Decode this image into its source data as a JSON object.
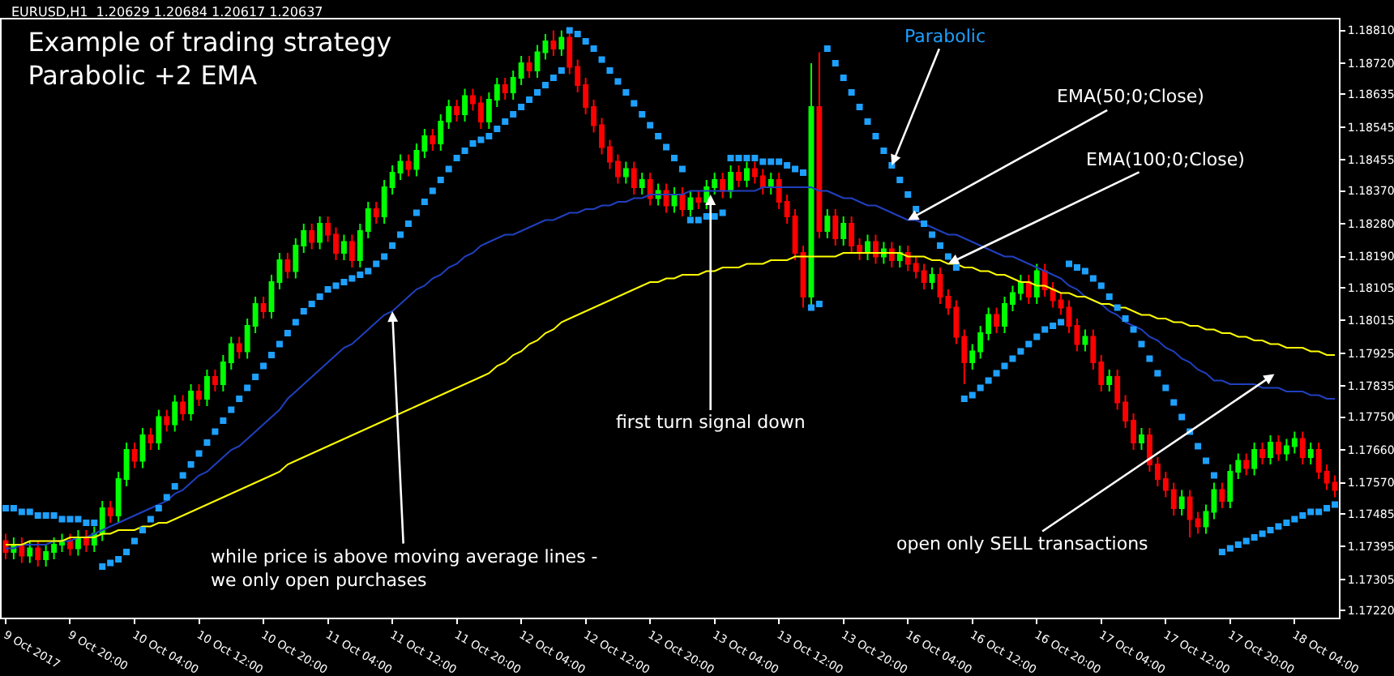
{
  "chart_data": {
    "type": "candlestick",
    "title": "Example of trading strategy\nParabolic +2 EMA",
    "subtitle": "EURUSD,H1  1.20629 1.20684 1.20617 1.20637",
    "categories": [
      "9 Oct 2017",
      null,
      null,
      null,
      null,
      null,
      null,
      null,
      "9 Oct 20:00",
      null,
      null,
      null,
      null,
      null,
      null,
      null,
      "10 Oct 04:00",
      null,
      null,
      null,
      null,
      null,
      null,
      null,
      "10 Oct 12:00",
      null,
      null,
      null,
      null,
      null,
      null,
      null,
      "10 Oct 20:00",
      null,
      null,
      null,
      null,
      null,
      null,
      null,
      "11 Oct 04:00",
      null,
      null,
      null,
      null,
      null,
      null,
      null,
      "11 Oct 12:00",
      null,
      null,
      null,
      null,
      null,
      null,
      null,
      "11 Oct 20:00",
      null,
      null,
      null,
      null,
      null,
      null,
      null,
      "12 Oct 04:00",
      null,
      null,
      null,
      null,
      null,
      null,
      null,
      "12 Oct 12:00",
      null,
      null,
      null,
      null,
      null,
      null,
      null,
      "12 Oct 20:00",
      null,
      null,
      null,
      null,
      null,
      null,
      null,
      "13 Oct 04:00",
      null,
      null,
      null,
      null,
      null,
      null,
      null,
      "13 Oct 12:00",
      null,
      null,
      null,
      null,
      null,
      null,
      null,
      "13 Oct 20:00",
      null,
      null,
      null,
      null,
      null,
      null,
      null,
      "16 Oct 04:00",
      null,
      null,
      null,
      null,
      null,
      null,
      null,
      "16 Oct 12:00",
      null,
      null,
      null,
      null,
      null,
      null,
      null,
      "16 Oct 20:00",
      null,
      null,
      null,
      null,
      null,
      null,
      null,
      "17 Oct 04:00",
      null,
      null,
      null,
      null,
      null,
      null,
      null,
      "17 Oct 12:00",
      null,
      null,
      null,
      null,
      null,
      null,
      null,
      "17 Oct 20:00",
      null,
      null,
      null,
      null,
      null,
      null,
      null,
      "18 Oct 04:00",
      null,
      null,
      null,
      null,
      null
    ],
    "ohlc": [
      [
        1.1741,
        1.1743,
        1.1736,
        1.1738
      ],
      [
        1.1738,
        1.1742,
        1.1736,
        1.174
      ],
      [
        1.174,
        1.1742,
        1.1735,
        1.1737
      ],
      [
        1.1737,
        1.1741,
        1.1735,
        1.1739
      ],
      [
        1.1739,
        1.1741,
        1.1734,
        1.1736
      ],
      [
        1.1736,
        1.174,
        1.1734,
        1.1738
      ],
      [
        1.1738,
        1.1742,
        1.1736,
        1.174
      ],
      [
        1.174,
        1.1743,
        1.1738,
        1.1741
      ],
      [
        1.1741,
        1.1743,
        1.1737,
        1.1739
      ],
      [
        1.1739,
        1.1744,
        1.1737,
        1.1742
      ],
      [
        1.1742,
        1.1744,
        1.1738,
        1.174
      ],
      [
        1.174,
        1.1745,
        1.1738,
        1.1743
      ],
      [
        1.1743,
        1.1752,
        1.1741,
        1.175
      ],
      [
        1.175,
        1.1752,
        1.1746,
        1.1748
      ],
      [
        1.1748,
        1.176,
        1.1746,
        1.1758
      ],
      [
        1.1758,
        1.1768,
        1.1756,
        1.1766
      ],
      [
        1.1766,
        1.1768,
        1.1761,
        1.1763
      ],
      [
        1.1763,
        1.1772,
        1.1761,
        1.177
      ],
      [
        1.177,
        1.1772,
        1.1766,
        1.1768
      ],
      [
        1.1768,
        1.1777,
        1.1766,
        1.1775
      ],
      [
        1.1775,
        1.1777,
        1.1771,
        1.1773
      ],
      [
        1.1773,
        1.1781,
        1.1771,
        1.1779
      ],
      [
        1.1779,
        1.1781,
        1.1774,
        1.1776
      ],
      [
        1.1776,
        1.1784,
        1.1774,
        1.1782
      ],
      [
        1.1782,
        1.1784,
        1.1778,
        1.178
      ],
      [
        1.178,
        1.1788,
        1.1778,
        1.1786
      ],
      [
        1.1786,
        1.1788,
        1.1782,
        1.1784
      ],
      [
        1.1784,
        1.1792,
        1.1782,
        1.179
      ],
      [
        1.179,
        1.1797,
        1.1788,
        1.1795
      ],
      [
        1.1795,
        1.1797,
        1.1791,
        1.1793
      ],
      [
        1.1793,
        1.1802,
        1.1791,
        1.18
      ],
      [
        1.18,
        1.1808,
        1.1798,
        1.1806
      ],
      [
        1.1806,
        1.1808,
        1.1802,
        1.1804
      ],
      [
        1.1804,
        1.1814,
        1.1802,
        1.1812
      ],
      [
        1.1812,
        1.182,
        1.181,
        1.1818
      ],
      [
        1.1818,
        1.182,
        1.1813,
        1.1815
      ],
      [
        1.1815,
        1.1824,
        1.1813,
        1.1822
      ],
      [
        1.1822,
        1.1828,
        1.182,
        1.1826
      ],
      [
        1.1826,
        1.1828,
        1.1821,
        1.1823
      ],
      [
        1.1823,
        1.183,
        1.1821,
        1.1828
      ],
      [
        1.1828,
        1.183,
        1.1823,
        1.1825
      ],
      [
        1.1825,
        1.1827,
        1.1818,
        1.182
      ],
      [
        1.182,
        1.1825,
        1.1818,
        1.1823
      ],
      [
        1.1823,
        1.1825,
        1.1816,
        1.1818
      ],
      [
        1.1818,
        1.1828,
        1.1816,
        1.1826
      ],
      [
        1.1826,
        1.1834,
        1.1824,
        1.1832
      ],
      [
        1.1832,
        1.1834,
        1.1828,
        1.183
      ],
      [
        1.183,
        1.184,
        1.1828,
        1.1838
      ],
      [
        1.1838,
        1.1844,
        1.1836,
        1.1842
      ],
      [
        1.1842,
        1.1847,
        1.184,
        1.1845
      ],
      [
        1.1845,
        1.1847,
        1.1841,
        1.1843
      ],
      [
        1.1843,
        1.185,
        1.1841,
        1.1848
      ],
      [
        1.1848,
        1.1854,
        1.1846,
        1.1852
      ],
      [
        1.1852,
        1.1854,
        1.1848,
        1.185
      ],
      [
        1.185,
        1.1858,
        1.1848,
        1.1856
      ],
      [
        1.1856,
        1.1862,
        1.1854,
        1.186
      ],
      [
        1.186,
        1.1862,
        1.1856,
        1.1858
      ],
      [
        1.1858,
        1.1865,
        1.1856,
        1.1863
      ],
      [
        1.1863,
        1.1865,
        1.1859,
        1.1861
      ],
      [
        1.1861,
        1.1863,
        1.1854,
        1.1856
      ],
      [
        1.1856,
        1.1864,
        1.1854,
        1.1862
      ],
      [
        1.1862,
        1.1868,
        1.186,
        1.1866
      ],
      [
        1.1866,
        1.1868,
        1.1862,
        1.1864
      ],
      [
        1.1864,
        1.187,
        1.1862,
        1.1868
      ],
      [
        1.1868,
        1.1874,
        1.1866,
        1.1872
      ],
      [
        1.1872,
        1.1874,
        1.1868,
        1.187
      ],
      [
        1.187,
        1.1877,
        1.1868,
        1.1875
      ],
      [
        1.1875,
        1.188,
        1.1873,
        1.1878
      ],
      [
        1.1878,
        1.1881,
        1.1874,
        1.1876
      ],
      [
        1.1876,
        1.1881,
        1.1874,
        1.1879
      ],
      [
        1.1879,
        1.1881,
        1.1869,
        1.1871
      ],
      [
        1.1871,
        1.1873,
        1.1864,
        1.1866
      ],
      [
        1.1866,
        1.1868,
        1.1858,
        1.186
      ],
      [
        1.186,
        1.1862,
        1.1853,
        1.1855
      ],
      [
        1.1855,
        1.1857,
        1.1847,
        1.1849
      ],
      [
        1.1849,
        1.1851,
        1.1843,
        1.1845
      ],
      [
        1.1845,
        1.1847,
        1.1839,
        1.1841
      ],
      [
        1.1841,
        1.1845,
        1.1839,
        1.1843
      ],
      [
        1.1843,
        1.1845,
        1.1836,
        1.1838
      ],
      [
        1.1838,
        1.1842,
        1.1836,
        1.184
      ],
      [
        1.184,
        1.1842,
        1.1833,
        1.1835
      ],
      [
        1.1835,
        1.1839,
        1.1833,
        1.1837
      ],
      [
        1.1837,
        1.1839,
        1.1831,
        1.1833
      ],
      [
        1.1833,
        1.1838,
        1.1831,
        1.1836
      ],
      [
        1.1836,
        1.1838,
        1.183,
        1.1832
      ],
      [
        1.1832,
        1.1837,
        1.183,
        1.1835
      ],
      [
        1.1835,
        1.1837,
        1.1832,
        1.1834
      ],
      [
        1.1834,
        1.184,
        1.1832,
        1.1838
      ],
      [
        1.1838,
        1.1842,
        1.1836,
        1.184
      ],
      [
        1.184,
        1.1842,
        1.1835,
        1.1837
      ],
      [
        1.1837,
        1.1844,
        1.1835,
        1.1842
      ],
      [
        1.1842,
        1.1844,
        1.1838,
        1.184
      ],
      [
        1.184,
        1.1845,
        1.1838,
        1.1843
      ],
      [
        1.1843,
        1.1845,
        1.1839,
        1.1841
      ],
      [
        1.1841,
        1.1843,
        1.1836,
        1.1838
      ],
      [
        1.1838,
        1.1842,
        1.1836,
        1.184
      ],
      [
        1.184,
        1.1842,
        1.1832,
        1.1834
      ],
      [
        1.1834,
        1.1836,
        1.1828,
        1.183
      ],
      [
        1.183,
        1.1832,
        1.1818,
        1.182
      ],
      [
        1.182,
        1.1822,
        1.1805,
        1.1808
      ],
      [
        1.1808,
        1.1872,
        1.1805,
        1.186
      ],
      [
        1.186,
        1.1875,
        1.1824,
        1.1826
      ],
      [
        1.1826,
        1.1832,
        1.1824,
        1.183
      ],
      [
        1.183,
        1.1832,
        1.1822,
        1.1824
      ],
      [
        1.1824,
        1.183,
        1.1822,
        1.1828
      ],
      [
        1.1828,
        1.183,
        1.182,
        1.1822
      ],
      [
        1.1822,
        1.1824,
        1.1818,
        1.182
      ],
      [
        1.182,
        1.1825,
        1.1818,
        1.1823
      ],
      [
        1.1823,
        1.1825,
        1.1817,
        1.1819
      ],
      [
        1.1819,
        1.1823,
        1.1817,
        1.1821
      ],
      [
        1.1821,
        1.1823,
        1.1816,
        1.1818
      ],
      [
        1.1818,
        1.1822,
        1.1816,
        1.182
      ],
      [
        1.182,
        1.1822,
        1.1815,
        1.1817
      ],
      [
        1.1817,
        1.1819,
        1.1813,
        1.1815
      ],
      [
        1.1815,
        1.1817,
        1.181,
        1.1812
      ],
      [
        1.1812,
        1.1816,
        1.181,
        1.1814
      ],
      [
        1.1814,
        1.1816,
        1.1806,
        1.1808
      ],
      [
        1.1808,
        1.181,
        1.1803,
        1.1805
      ],
      [
        1.1805,
        1.1807,
        1.1795,
        1.1797
      ],
      [
        1.1797,
        1.1799,
        1.1784,
        1.179
      ],
      [
        1.179,
        1.1795,
        1.1788,
        1.1793
      ],
      [
        1.1793,
        1.18,
        1.1791,
        1.1798
      ],
      [
        1.1798,
        1.1805,
        1.1796,
        1.1803
      ],
      [
        1.1803,
        1.1805,
        1.1798,
        1.18
      ],
      [
        1.18,
        1.1808,
        1.1798,
        1.1806
      ],
      [
        1.1806,
        1.1811,
        1.1804,
        1.1809
      ],
      [
        1.1809,
        1.1814,
        1.1807,
        1.1812
      ],
      [
        1.1812,
        1.1814,
        1.1806,
        1.1808
      ],
      [
        1.1808,
        1.1817,
        1.1806,
        1.1815
      ],
      [
        1.1815,
        1.1817,
        1.1808,
        1.181
      ],
      [
        1.181,
        1.1812,
        1.1805,
        1.1807
      ],
      [
        1.1807,
        1.1809,
        1.1803,
        1.1805
      ],
      [
        1.1805,
        1.1807,
        1.1798,
        1.18
      ],
      [
        1.18,
        1.1802,
        1.1793,
        1.1795
      ],
      [
        1.1795,
        1.1799,
        1.1793,
        1.1797
      ],
      [
        1.1797,
        1.1799,
        1.1788,
        1.179
      ],
      [
        1.179,
        1.1792,
        1.1782,
        1.1784
      ],
      [
        1.1784,
        1.1788,
        1.1782,
        1.1786
      ],
      [
        1.1786,
        1.1788,
        1.1777,
        1.1779
      ],
      [
        1.1779,
        1.1781,
        1.1772,
        1.1774
      ],
      [
        1.1774,
        1.1776,
        1.1766,
        1.1768
      ],
      [
        1.1768,
        1.1772,
        1.1766,
        1.177
      ],
      [
        1.177,
        1.1772,
        1.176,
        1.1762
      ],
      [
        1.1762,
        1.1764,
        1.1756,
        1.1758
      ],
      [
        1.1758,
        1.176,
        1.1753,
        1.1755
      ],
      [
        1.1755,
        1.1757,
        1.1748,
        1.175
      ],
      [
        1.175,
        1.1755,
        1.1748,
        1.1753
      ],
      [
        1.1753,
        1.1755,
        1.1742,
        1.1747
      ],
      [
        1.1747,
        1.1749,
        1.1743,
        1.1745
      ],
      [
        1.1745,
        1.1751,
        1.1743,
        1.1749
      ],
      [
        1.1749,
        1.1757,
        1.1747,
        1.1755
      ],
      [
        1.1755,
        1.1757,
        1.175,
        1.1752
      ],
      [
        1.1752,
        1.1762,
        1.175,
        1.176
      ],
      [
        1.176,
        1.1765,
        1.1758,
        1.1763
      ],
      [
        1.1763,
        1.1765,
        1.1759,
        1.1761
      ],
      [
        1.1761,
        1.1768,
        1.1759,
        1.1766
      ],
      [
        1.1766,
        1.1768,
        1.1762,
        1.1764
      ],
      [
        1.1764,
        1.177,
        1.1762,
        1.1768
      ],
      [
        1.1768,
        1.177,
        1.1763,
        1.1765
      ],
      [
        1.1765,
        1.1769,
        1.1763,
        1.1767
      ],
      [
        1.1767,
        1.1771,
        1.1765,
        1.1769
      ],
      [
        1.1769,
        1.1771,
        1.1762,
        1.1764
      ],
      [
        1.1764,
        1.1768,
        1.1762,
        1.1766
      ],
      [
        1.1766,
        1.1768,
        1.1758,
        1.176
      ],
      [
        1.176,
        1.1762,
        1.1755,
        1.1757
      ],
      [
        1.1757,
        1.1759,
        1.1753,
        1.1755
      ]
    ],
    "colors": [
      "#ff0000",
      "#00ff00",
      "#ff0000",
      "#00ff00",
      "#ff0000",
      "#00ff00",
      "#00ff00",
      "#00ff00",
      "#ff0000",
      "#00ff00",
      "#ff0000",
      "#00ff00",
      "#00ff00",
      "#ff0000",
      "#00ff00",
      "#00ff00",
      "#ff0000",
      "#00ff00",
      "#ff0000",
      "#00ff00",
      "#ff0000",
      "#00ff00",
      "#ff0000",
      "#00ff00",
      "#ff0000",
      "#00ff00",
      "#ff0000",
      "#00ff00",
      "#00ff00",
      "#ff0000",
      "#00ff00",
      "#00ff00",
      "#ff0000",
      "#00ff00",
      "#00ff00",
      "#ff0000",
      "#00ff00",
      "#00ff00",
      "#ff0000",
      "#00ff00",
      "#ff0000",
      "#ff0000",
      "#00ff00",
      "#ff0000",
      "#00ff00",
      "#00ff00",
      "#ff0000",
      "#00ff00",
      "#00ff00",
      "#00ff00",
      "#ff0000",
      "#00ff00",
      "#00ff00",
      "#ff0000",
      "#00ff00",
      "#00ff00",
      "#ff0000",
      "#00ff00",
      "#ff0000",
      "#ff0000",
      "#00ff00",
      "#00ff00",
      "#ff0000",
      "#00ff00",
      "#00ff00",
      "#ff0000",
      "#00ff00",
      "#00ff00",
      "#ff0000",
      "#00ff00",
      "#ff0000",
      "#ff0000",
      "#ff0000",
      "#ff0000",
      "#ff0000",
      "#ff0000",
      "#ff0000",
      "#00ff00",
      "#ff0000",
      "#00ff00",
      "#ff0000",
      "#00ff00",
      "#ff0000",
      "#00ff00",
      "#ff0000",
      "#00ff00",
      "#ff0000",
      "#00ff00",
      "#00ff00",
      "#ff0000",
      "#00ff00",
      "#ff0000",
      "#00ff00",
      "#ff0000",
      "#ff0000",
      "#00ff00",
      "#ff0000",
      "#ff0000",
      "#ff0000",
      "#ff0000",
      "#00ff00",
      "#ff0000",
      "#00ff00",
      "#ff0000",
      "#00ff00",
      "#ff0000",
      "#ff0000",
      "#00ff00",
      "#ff0000",
      "#00ff00",
      "#ff0000",
      "#00ff00",
      "#ff0000",
      "#ff0000",
      "#ff0000",
      "#00ff00",
      "#ff0000",
      "#ff0000",
      "#ff0000",
      "#ff0000",
      "#00ff00",
      "#00ff00",
      "#00ff00",
      "#ff0000",
      "#00ff00",
      "#00ff00",
      "#00ff00",
      "#ff0000",
      "#00ff00",
      "#ff0000",
      "#ff0000",
      "#ff0000",
      "#ff0000",
      "#ff0000",
      "#00ff00",
      "#ff0000",
      "#ff0000",
      "#00ff00",
      "#ff0000",
      "#ff0000",
      "#ff0000",
      "#00ff00",
      "#ff0000",
      "#ff0000",
      "#ff0000",
      "#ff0000",
      "#00ff00",
      "#ff0000",
      "#ff0000",
      "#00ff00",
      "#00ff00",
      "#ff0000",
      "#00ff00",
      "#00ff00",
      "#ff0000",
      "#00ff00",
      "#ff0000",
      "#00ff00",
      "#ff0000",
      "#00ff00",
      "#00ff00",
      "#ff0000",
      "#00ff00",
      "#ff0000",
      "#ff0000",
      "#ff0000"
    ],
    "series": [
      {
        "name": "EMA(50;0;Close)",
        "type": "line",
        "color": "#2040c0",
        "values": [
          1.1739,
          1.1739,
          1.174,
          1.174,
          1.174,
          1.174,
          1.1741,
          1.1741,
          1.1741,
          1.1742,
          1.1742,
          1.1743,
          1.1744,
          1.1745,
          1.1746,
          1.1747,
          1.1748,
          1.1749,
          1.175,
          1.1751,
          1.1752,
          1.1754,
          1.1755,
          1.1757,
          1.1759,
          1.176,
          1.1762,
          1.1764,
          1.1766,
          1.1767,
          1.1769,
          1.1771,
          1.1773,
          1.1775,
          1.1777,
          1.178,
          1.1782,
          1.1784,
          1.1786,
          1.1788,
          1.179,
          1.1792,
          1.1794,
          1.1795,
          1.1797,
          1.1799,
          1.1801,
          1.1803,
          1.1804,
          1.1806,
          1.1808,
          1.181,
          1.1811,
          1.1813,
          1.1814,
          1.1816,
          1.1817,
          1.1819,
          1.182,
          1.1822,
          1.1823,
          1.1824,
          1.1825,
          1.1825,
          1.1826,
          1.1827,
          1.1828,
          1.1829,
          1.1829,
          1.183,
          1.1831,
          1.1831,
          1.1832,
          1.1832,
          1.1833,
          1.1833,
          1.1834,
          1.1834,
          1.1835,
          1.1835,
          1.1836,
          1.1836,
          1.1836,
          1.1836,
          1.1836,
          1.1837,
          1.1837,
          1.1837,
          1.1837,
          1.1837,
          1.1837,
          1.1837,
          1.1837,
          1.1837,
          1.1838,
          1.1838,
          1.1838,
          1.1838,
          1.1838,
          1.1838,
          1.1838,
          1.1837,
          1.1837,
          1.1836,
          1.1835,
          1.1835,
          1.1834,
          1.1833,
          1.1833,
          1.1832,
          1.1831,
          1.183,
          1.1829,
          1.1829,
          1.1828,
          1.1827,
          1.1826,
          1.1825,
          1.1825,
          1.1824,
          1.1823,
          1.1822,
          1.1821,
          1.182,
          1.1819,
          1.1819,
          1.1818,
          1.1817,
          1.1816,
          1.1815,
          1.1814,
          1.1813,
          1.1811,
          1.181,
          1.1808,
          1.1807,
          1.1806,
          1.1804,
          1.1803,
          1.1801,
          1.18,
          1.1799,
          1.1797,
          1.1796,
          1.1794,
          1.1793,
          1.1791,
          1.179,
          1.1788,
          1.1787,
          1.1785,
          1.1785,
          1.1784,
          1.1784,
          1.1784,
          1.1784,
          1.1783,
          1.1783,
          1.1783,
          1.1782,
          1.1782,
          1.1782,
          1.1781,
          1.1781,
          1.178,
          1.178
        ]
      },
      {
        "name": "EMA(100;0;Close)",
        "type": "line",
        "color": "#ffff00",
        "values": [
          1.174,
          1.174,
          1.174,
          1.1741,
          1.1741,
          1.1741,
          1.1741,
          1.1741,
          1.1742,
          1.1742,
          1.1742,
          1.1742,
          1.1743,
          1.1743,
          1.1744,
          1.1744,
          1.1744,
          1.1745,
          1.1745,
          1.1746,
          1.1746,
          1.1747,
          1.1748,
          1.1749,
          1.175,
          1.1751,
          1.1752,
          1.1753,
          1.1754,
          1.1755,
          1.1756,
          1.1757,
          1.1758,
          1.1759,
          1.176,
          1.1762,
          1.1763,
          1.1764,
          1.1765,
          1.1766,
          1.1767,
          1.1768,
          1.1769,
          1.177,
          1.1771,
          1.1772,
          1.1773,
          1.1774,
          1.1775,
          1.1776,
          1.1777,
          1.1778,
          1.1779,
          1.178,
          1.1781,
          1.1782,
          1.1783,
          1.1784,
          1.1785,
          1.1786,
          1.1787,
          1.1789,
          1.179,
          1.1792,
          1.1793,
          1.1795,
          1.1796,
          1.1798,
          1.1799,
          1.1801,
          1.1802,
          1.1803,
          1.1804,
          1.1805,
          1.1806,
          1.1807,
          1.1808,
          1.1809,
          1.181,
          1.1811,
          1.1812,
          1.1812,
          1.1813,
          1.1813,
          1.1814,
          1.1814,
          1.1814,
          1.1815,
          1.1815,
          1.1816,
          1.1816,
          1.1816,
          1.1817,
          1.1817,
          1.1817,
          1.1818,
          1.1818,
          1.1818,
          1.1819,
          1.1819,
          1.1819,
          1.1819,
          1.1819,
          1.1819,
          1.182,
          1.182,
          1.182,
          1.182,
          1.182,
          1.182,
          1.182,
          1.182,
          1.1819,
          1.1819,
          1.1819,
          1.1818,
          1.1818,
          1.1817,
          1.1817,
          1.1816,
          1.1816,
          1.1815,
          1.1815,
          1.1814,
          1.1814,
          1.1813,
          1.1812,
          1.1812,
          1.1811,
          1.1811,
          1.181,
          1.1809,
          1.1809,
          1.1808,
          1.1808,
          1.1807,
          1.1806,
          1.1806,
          1.1805,
          1.1805,
          1.1804,
          1.1803,
          1.1803,
          1.1802,
          1.1802,
          1.1801,
          1.1801,
          1.18,
          1.18,
          1.1799,
          1.1799,
          1.1798,
          1.1798,
          1.1797,
          1.1797,
          1.1796,
          1.1796,
          1.1795,
          1.1795,
          1.1794,
          1.1794,
          1.1794,
          1.1793,
          1.1793,
          1.1792,
          1.1792
        ]
      },
      {
        "name": "Parabolic",
        "type": "scatter",
        "marker": "square",
        "color": "#1ea0ff",
        "values": [
          1.175,
          1.175,
          1.1749,
          1.1749,
          1.1748,
          1.1748,
          1.1748,
          1.1747,
          1.1747,
          1.1747,
          1.1746,
          1.1746,
          1.1734,
          1.1735,
          1.1736,
          1.1738,
          1.1741,
          1.1744,
          1.1747,
          1.175,
          1.1753,
          1.1756,
          1.1759,
          1.1762,
          1.1765,
          1.1768,
          1.1771,
          1.1774,
          1.1777,
          1.178,
          1.1783,
          1.1786,
          1.1789,
          1.1792,
          1.1795,
          1.1798,
          1.1801,
          1.1804,
          1.1806,
          1.1808,
          1.181,
          1.1811,
          1.1812,
          1.1813,
          1.1814,
          1.1815,
          1.1817,
          1.1819,
          1.1822,
          1.1825,
          1.1828,
          1.1831,
          1.1834,
          1.1837,
          1.184,
          1.1843,
          1.1846,
          1.1848,
          1.185,
          1.1851,
          1.1852,
          1.1854,
          1.1856,
          1.1858,
          1.186,
          1.1862,
          1.1864,
          1.1866,
          1.1868,
          1.187,
          1.1881,
          1.188,
          1.1878,
          1.1876,
          1.1873,
          1.187,
          1.1867,
          1.1864,
          1.1861,
          1.1858,
          1.1855,
          1.1852,
          1.1849,
          1.1846,
          1.1843,
          1.1829,
          1.1829,
          1.183,
          1.183,
          1.1831,
          1.1846,
          1.1846,
          1.1846,
          1.1846,
          1.1845,
          1.1845,
          1.1845,
          1.1844,
          1.1843,
          1.1842,
          1.1805,
          1.1806,
          1.1876,
          1.1872,
          1.1868,
          1.1864,
          1.186,
          1.1856,
          1.1852,
          1.1848,
          1.1844,
          1.184,
          1.1836,
          1.1832,
          1.1828,
          1.1825,
          1.1822,
          1.1819,
          1.1816,
          1.178,
          1.1781,
          1.1783,
          1.1785,
          1.1787,
          1.1789,
          1.1791,
          1.1793,
          1.1795,
          1.1797,
          1.1799,
          1.18,
          1.1801,
          1.1817,
          1.1816,
          1.1815,
          1.1813,
          1.1811,
          1.1808,
          1.1805,
          1.1802,
          1.1799,
          1.1795,
          1.1791,
          1.1787,
          1.1783,
          1.1779,
          1.1775,
          1.1771,
          1.1767,
          1.1763,
          1.1759,
          1.1738,
          1.1739,
          1.174,
          1.1741,
          1.1742,
          1.1743,
          1.1744,
          1.1745,
          1.1746,
          1.1747,
          1.1748,
          1.1749,
          1.1749,
          1.175,
          1.1751
        ]
      }
    ],
    "ylim": [
      1.172,
      1.1884
    ],
    "yticks": [
      {
        "value": 1.1722,
        "label": "1.17220"
      },
      {
        "value": 1.17305,
        "label": "1.17305"
      },
      {
        "value": 1.17395,
        "label": "1.17395"
      },
      {
        "value": 1.17485,
        "label": "1.17485"
      },
      {
        "value": 1.1757,
        "label": "1.17570"
      },
      {
        "value": 1.1766,
        "label": "1.17660"
      },
      {
        "value": 1.1775,
        "label": "1.17750"
      },
      {
        "value": 1.17835,
        "label": "1.17835"
      },
      {
        "value": 1.17925,
        "label": "1.17925"
      },
      {
        "value": 1.18015,
        "label": "1.18015"
      },
      {
        "value": 1.18105,
        "label": "1.18105"
      },
      {
        "value": 1.1819,
        "label": "1.18190"
      },
      {
        "value": 1.1828,
        "label": "1.18280"
      },
      {
        "value": 1.1837,
        "label": "1.18370"
      },
      {
        "value": 1.18455,
        "label": "1.18455"
      },
      {
        "value": 1.18545,
        "label": "1.18545"
      },
      {
        "value": 1.18635,
        "label": "1.18635"
      },
      {
        "value": 1.1872,
        "label": "1.18720"
      },
      {
        "value": 1.1881,
        "label": "1.18810"
      }
    ],
    "annotations": [
      {
        "text": "first turn signal down",
        "y": 1.1836
      },
      {
        "text": "while price is above moving average lines -\nwe only open purchases",
        "x": "11 Oct 12:00",
        "y": 1.1804
      },
      "open only SELL transactions"
    ],
    "grid": false,
    "legend": false
  }
}
